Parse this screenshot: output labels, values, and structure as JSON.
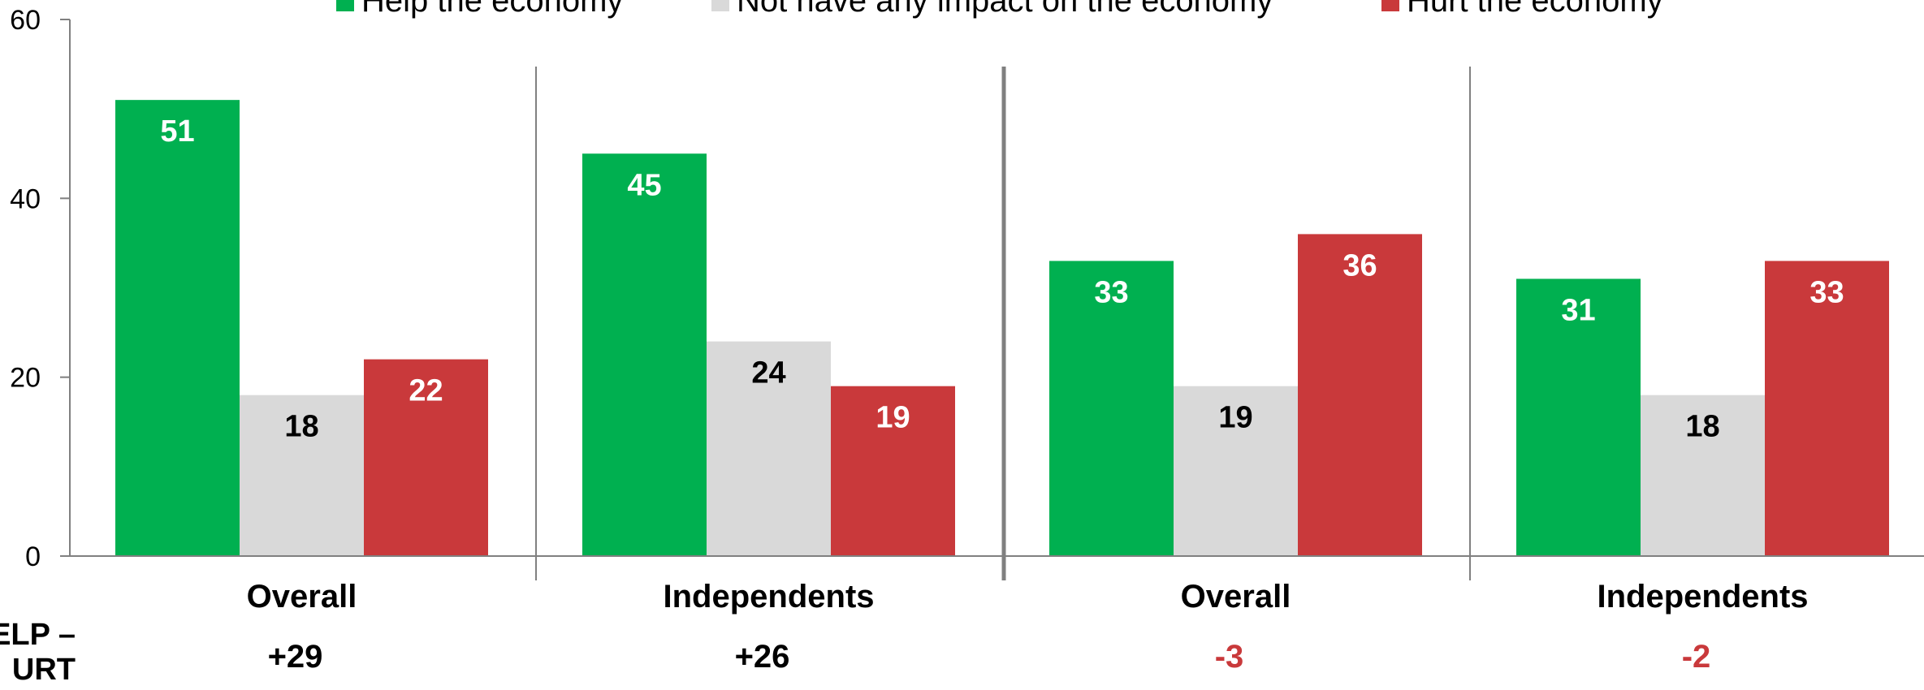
{
  "chart_data": {
    "type": "bar",
    "categories": [
      "Overall",
      "Independents",
      "Overall",
      "Independents"
    ],
    "series": [
      {
        "name": "Help the economy",
        "values": [
          51,
          45,
          33,
          31
        ],
        "color": "#00b050",
        "label_color": "#ffffff"
      },
      {
        "name": "Not have any impact on the economy",
        "values": [
          18,
          24,
          19,
          18
        ],
        "color": "#d9d9d9",
        "label_color": "#000000"
      },
      {
        "name": "Hurt the economy",
        "values": [
          22,
          19,
          36,
          33
        ],
        "color": "#c9393b",
        "label_color": "#ffffff"
      }
    ],
    "ylim": [
      0,
      60
    ],
    "yticks": [
      "0",
      "20",
      "40",
      "60"
    ],
    "legend_position": "top",
    "grid": false,
    "net_row_label_lines": [
      "ELP –",
      "URT"
    ],
    "net_values": [
      "+29",
      "+26",
      "-3",
      "-2"
    ],
    "net_colors": [
      "#000000",
      "#000000",
      "#c9393b",
      "#c9393b"
    ]
  }
}
